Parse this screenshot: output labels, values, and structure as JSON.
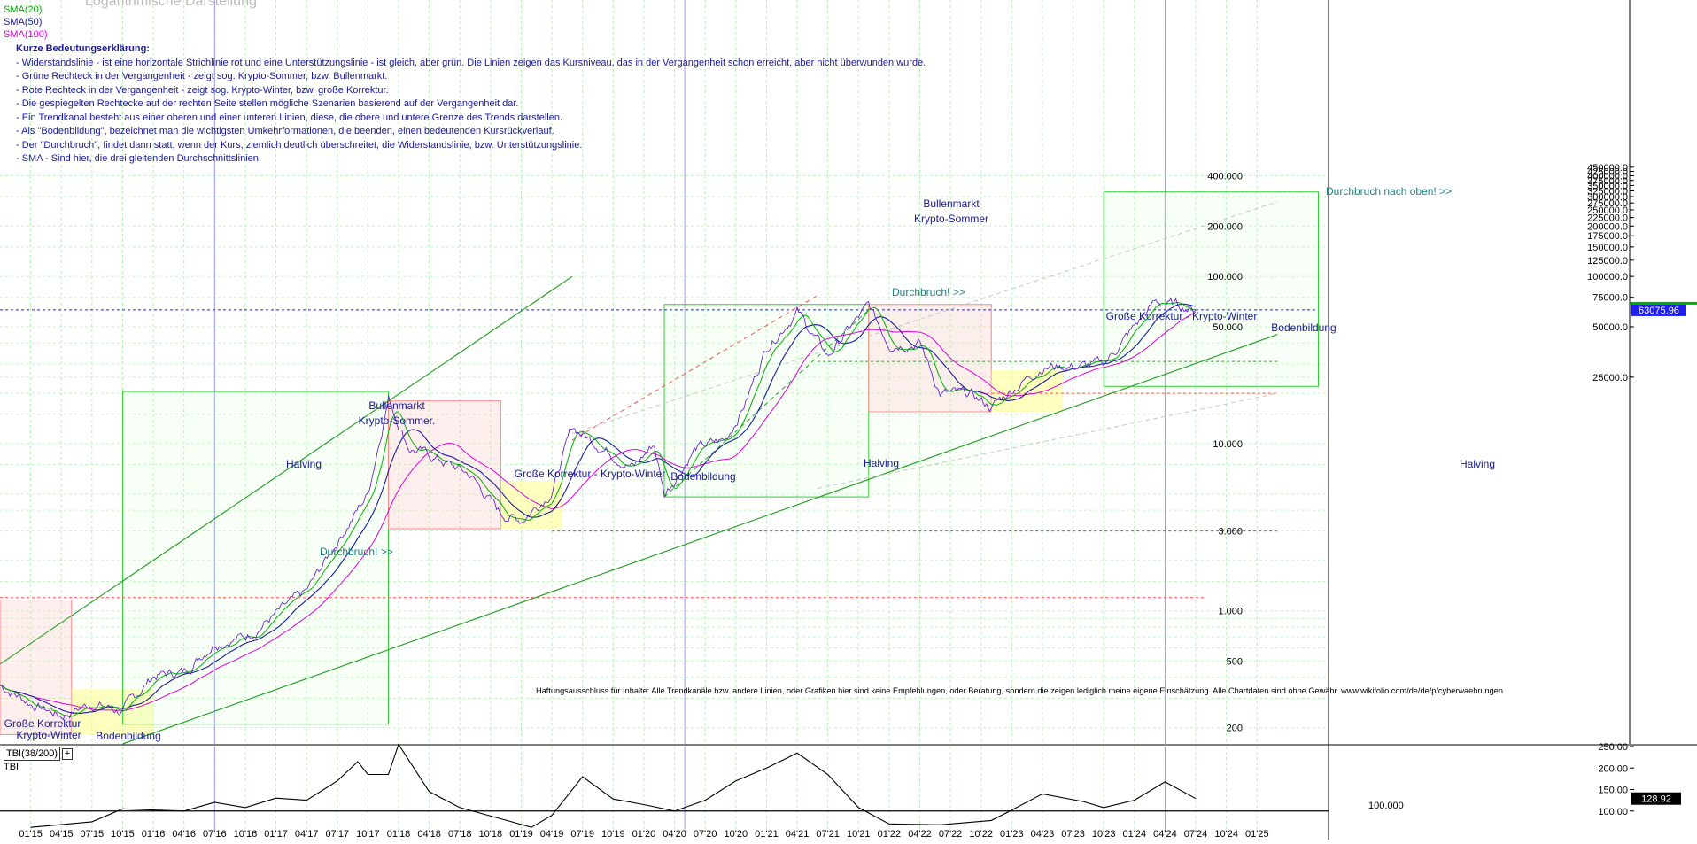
{
  "chart_title": "Logarithmische Darstellung",
  "legend": [
    {
      "name": "SMA(20)",
      "color": "#00b000"
    },
    {
      "name": "SMA(50)",
      "color": "#1a1a9a"
    },
    {
      "name": "SMA(100)",
      "color": "#e000e0"
    }
  ],
  "notes": {
    "heading": "Kurze Bedeutungserklärung:",
    "lines": [
      "- Widerstandslinie - ist eine horizontale Strichlinie rot und eine Unterstützungslinie - ist gleich, aber grün. Die Linien zeigen das Kursniveau, das in der Vergangenheit schon erreicht, aber nicht überwunden wurde.",
      "- Grüne Rechteck in der Vergangenheit - zeigt sog. Krypto-Sommer, bzw. Bullenmarkt.",
      "- Rote Rechteck in der Vergangenheit - zeigt sog. Krypto-Winter, bzw. große Korrektur.",
      "- Die gespiegelten Rechtecke auf der rechten Seite stellen mögliche Szenarien basierend auf der Vergangenheit dar.",
      "- Ein Trendkanal besteht aus einer oberen und einer unteren Linien, diese, die obere und untere Grenze des Trends darstellen.",
      "- Als \"Bodenbildung\", bezeichnet man die wichtigsten Umkehrformationen, die beenden, einen bedeutenden Kursrückverlauf.",
      "- Der \"Durchbruch\", findet dann statt, wenn der Kurs, ziemlich deutlich überschreitet, die Widerstandslinie, bzw. Unterstützungslinie.",
      "- SMA - Sind hier, die drei gleitenden Durchschnittslinien."
    ]
  },
  "disclaimer": "Haftungsausschluss für Inhalte: Alle Trendkanäle bzw. andere Linien, oder Grafiken hier sind keine Empfehlungen, oder Beratung, sondern die zeigen lediglich meine eigene Einschätzung. Alle Chartdaten sind ohne Gewähr.  www.wikifolio.com/de/de/p/cyberwaehrungen",
  "annotations": {
    "bull1": "Bullenmarkt",
    "bull1b": "Krypto-Sommer.",
    "bull2": "Bullenmarkt",
    "bull2b": "Krypto-Sommer",
    "halving": "Halving",
    "durchbruch": "Durchbruch! >>",
    "durchbruch_oben": "Durchbruch nach oben! >>",
    "korrektur": "Große Korrektur - Krypto-Winter",
    "korrektur_a": "Große Korrektur",
    "korrektur_b": "Krypto-Winter",
    "boden": "Bodenbildung"
  },
  "price_label": "63075.96",
  "tbi_label": "TBI(38/200)",
  "tbi_plus": "+",
  "tbi_name": "TBI",
  "tbi_value": "128.92",
  "tbi_line_label": "100.000",
  "chart_data": {
    "type": "line",
    "title": "Logarithmische Darstellung",
    "y_scale": "log",
    "ylim": [
      160,
      4500000
    ],
    "y_ticks": [
      {
        "v": 200,
        "t": "200"
      },
      {
        "v": 500,
        "t": "500"
      },
      {
        "v": 1000,
        "t": "1.000"
      },
      {
        "v": 3000,
        "t": "3.000"
      },
      {
        "v": 10000,
        "t": "10.000"
      },
      {
        "v": 50000,
        "t": "50.000"
      },
      {
        "v": 100000,
        "t": "100.000"
      },
      {
        "v": 200000,
        "t": "200.000"
      },
      {
        "v": 400000,
        "t": "400.000"
      }
    ],
    "right_ticks": [
      {
        "v": 25000,
        "t": "25000.0"
      },
      {
        "v": 50000,
        "t": "50000.0"
      },
      {
        "v": 75000,
        "t": "75000.0"
      },
      {
        "v": 100000,
        "t": "100000.0"
      },
      {
        "v": 125000,
        "t": "125000.0"
      },
      {
        "v": 150000,
        "t": "150000.0"
      },
      {
        "v": 175000,
        "t": "175000.0"
      },
      {
        "v": 200000,
        "t": "200000.0"
      },
      {
        "v": 225000,
        "t": "225000.0"
      },
      {
        "v": 250000,
        "t": "250000.0"
      },
      {
        "v": 275000,
        "t": "275000.0"
      },
      {
        "v": 300000,
        "t": "300000.0"
      },
      {
        "v": 325000,
        "t": "325000.0"
      },
      {
        "v": 350000,
        "t": "350000.0"
      },
      {
        "v": 375000,
        "t": "375000.0"
      },
      {
        "v": 400000,
        "t": "400000.0"
      },
      {
        "v": 425000,
        "t": "425000.0"
      },
      {
        "v": 450000,
        "t": "450000.0"
      }
    ],
    "x_ticks": [
      "01'15",
      "04'15",
      "07'15",
      "10'15",
      "01'16",
      "04'16",
      "07'16",
      "10'16",
      "01'17",
      "04'17",
      "07'17",
      "10'17",
      "01'18",
      "04'18",
      "07'18",
      "10'18",
      "01'19",
      "04'19",
      "07'19",
      "10'19",
      "01'20",
      "04'20",
      "07'20",
      "10'20",
      "01'21",
      "04'21",
      "07'21",
      "10'21",
      "01'22",
      "04'22",
      "07'22",
      "10'22",
      "01'23",
      "04'23",
      "07'23",
      "10'23",
      "01'24",
      "04'24",
      "07'24",
      "10'24",
      "01'25"
    ],
    "price": [
      [
        "2014-10",
        360
      ],
      [
        "2015-01",
        280
      ],
      [
        "2015-04",
        235
      ],
      [
        "2015-07",
        280
      ],
      [
        "2015-10",
        250
      ],
      [
        "2016-01",
        410
      ],
      [
        "2016-04",
        430
      ],
      [
        "2016-07",
        650
      ],
      [
        "2016-10",
        700
      ],
      [
        "2017-01",
        950
      ],
      [
        "2017-04",
        1300
      ],
      [
        "2017-07",
        2600
      ],
      [
        "2017-10",
        5000
      ],
      [
        "2017-12",
        19000
      ],
      [
        "2018-02",
        9500
      ],
      [
        "2018-05",
        8000
      ],
      [
        "2018-08",
        6500
      ],
      [
        "2018-11",
        3800
      ],
      [
        "2019-01",
        3500
      ],
      [
        "2019-04",
        5200
      ],
      [
        "2019-06",
        12500
      ],
      [
        "2019-09",
        9500
      ],
      [
        "2019-12",
        7200
      ],
      [
        "2020-02",
        10000
      ],
      [
        "2020-03",
        5000
      ],
      [
        "2020-06",
        9300
      ],
      [
        "2020-09",
        10500
      ],
      [
        "2020-11",
        18000
      ],
      [
        "2021-01",
        38000
      ],
      [
        "2021-04",
        62000
      ],
      [
        "2021-07",
        33000
      ],
      [
        "2021-09",
        48000
      ],
      [
        "2021-11",
        66000
      ],
      [
        "2022-01",
        40000
      ],
      [
        "2022-04",
        40000
      ],
      [
        "2022-06",
        20000
      ],
      [
        "2022-09",
        19500
      ],
      [
        "2022-11",
        16500
      ],
      [
        "2023-01",
        21000
      ],
      [
        "2023-04",
        29000
      ],
      [
        "2023-08",
        29000
      ],
      [
        "2023-10",
        30000
      ],
      [
        "2023-12",
        42000
      ],
      [
        "2024-03",
        70000
      ],
      [
        "2024-06",
        66000
      ],
      [
        "2024-07",
        63075.96
      ]
    ],
    "last_price": 63075.96,
    "tbi": {
      "name": "TBI(38/200)",
      "ylim": [
        50,
        250
      ],
      "y_ticks": [
        {
          "v": 100,
          "t": "100.00"
        },
        {
          "v": 150,
          "t": "150.00"
        },
        {
          "v": 200,
          "t": "200.00"
        },
        {
          "v": 250,
          "t": "250.00"
        }
      ],
      "values": [
        [
          "2015-01",
          62
        ],
        [
          "2015-07",
          75
        ],
        [
          "2015-10",
          105
        ],
        [
          "2016-04",
          100
        ],
        [
          "2016-07",
          120
        ],
        [
          "2016-10",
          108
        ],
        [
          "2017-01",
          130
        ],
        [
          "2017-04",
          125
        ],
        [
          "2017-07",
          170
        ],
        [
          "2017-09",
          215
        ],
        [
          "2017-10",
          185
        ],
        [
          "2017-12",
          185
        ],
        [
          "2018-01",
          255
        ],
        [
          "2018-04",
          145
        ],
        [
          "2018-07",
          108
        ],
        [
          "2018-11",
          82
        ],
        [
          "2019-02",
          62
        ],
        [
          "2019-04",
          90
        ],
        [
          "2019-07",
          180
        ],
        [
          "2019-10",
          128
        ],
        [
          "2020-01",
          115
        ],
        [
          "2020-04",
          100
        ],
        [
          "2020-07",
          125
        ],
        [
          "2020-10",
          170
        ],
        [
          "2021-01",
          200
        ],
        [
          "2021-04",
          235
        ],
        [
          "2021-07",
          185
        ],
        [
          "2021-10",
          108
        ],
        [
          "2022-01",
          70
        ],
        [
          "2022-06",
          68
        ],
        [
          "2022-11",
          78
        ],
        [
          "2023-01",
          102
        ],
        [
          "2023-04",
          140
        ],
        [
          "2023-08",
          122
        ],
        [
          "2023-10",
          108
        ],
        [
          "2024-01",
          125
        ],
        [
          "2024-04",
          168
        ],
        [
          "2024-07",
          128.92
        ]
      ],
      "reference": 100,
      "last": 128.92
    },
    "channel_lines": [
      {
        "from": [
          "2014-10",
          480
        ],
        "to": [
          "2019-06",
          100000
        ],
        "color": "#2ea02e",
        "style": "solid"
      },
      {
        "from": [
          "2015-10",
          160
        ],
        "to": [
          "2025-03",
          45000
        ],
        "color": "#2ea02e",
        "style": "solid"
      },
      {
        "from": [
          "2020-03",
          4800
        ],
        "to": [
          "2021-11",
          63000
        ],
        "color": "#2ea02e",
        "style": "dashed"
      },
      {
        "from": [
          "2019-06",
          10500
        ],
        "to": [
          "2021-06",
          77000
        ],
        "color": "#ee5555",
        "style": "dashed"
      },
      {
        "from": [
          "2019-06",
          11500
        ],
        "to": [
          "2025-03",
          280000
        ],
        "color": "#c8c8c8",
        "style": "dashed"
      },
      {
        "from": [
          "2021-06",
          5400
        ],
        "to": [
          "2025-03",
          20000
        ],
        "color": "#c8c8c8",
        "style": "dashed"
      }
    ],
    "h_lines": [
      {
        "y": 63075.96,
        "color": "#2020ee",
        "style": "dashed",
        "from": "2014-10",
        "to": "2025-07"
      },
      {
        "y": 1200,
        "color": "#ee5555",
        "style": "dashed",
        "from": "2014-10",
        "to": "2024-08"
      },
      {
        "y": 20000,
        "color": "#ee5555",
        "style": "dashed",
        "from": "2022-10",
        "to": "2025-03"
      },
      {
        "y": 3000,
        "color": "#2ea02e",
        "style": "dashed",
        "from": "2019-04",
        "to": "2025-03"
      },
      {
        "y": 31000,
        "color": "#2ea02e",
        "style": "dashed",
        "from": "2021-06",
        "to": "2025-03"
      }
    ],
    "rects": [
      {
        "x0": "2014-10",
        "x1": "2015-05",
        "y0": 182,
        "y1": 1160,
        "kind": "red"
      },
      {
        "x0": "2015-05",
        "x1": "2016-01",
        "y0": 182,
        "y1": 340,
        "kind": "yellow"
      },
      {
        "x0": "2015-10",
        "x1": "2017-12",
        "y0": 210,
        "y1": 20500,
        "kind": "green"
      },
      {
        "x0": "2017-12",
        "x1": "2018-11",
        "y0": 3100,
        "y1": 18000,
        "kind": "red"
      },
      {
        "x0": "2018-11",
        "x1": "2019-05",
        "y0": 3100,
        "y1": 6000,
        "kind": "yellow"
      },
      {
        "x0": "2020-03",
        "x1": "2021-11",
        "y0": 4800,
        "y1": 68000,
        "kind": "green"
      },
      {
        "x0": "2021-11",
        "x1": "2022-11",
        "y0": 15500,
        "y1": 68000,
        "kind": "red"
      },
      {
        "x0": "2022-11",
        "x1": "2023-06",
        "y0": 15500,
        "y1": 27500,
        "kind": "yellow"
      },
      {
        "x0": "2023-10",
        "x1": "2025-07",
        "y0": 22000,
        "y1": 320000,
        "kind": "green"
      },
      {
        "x0": "2021-11",
        "x1": "2022-10",
        "y0": 4800,
        "y1": 64000,
        "kind": "green-ghost"
      }
    ],
    "halvings": [
      "2016-07",
      "2020-05",
      "2024-04"
    ]
  }
}
